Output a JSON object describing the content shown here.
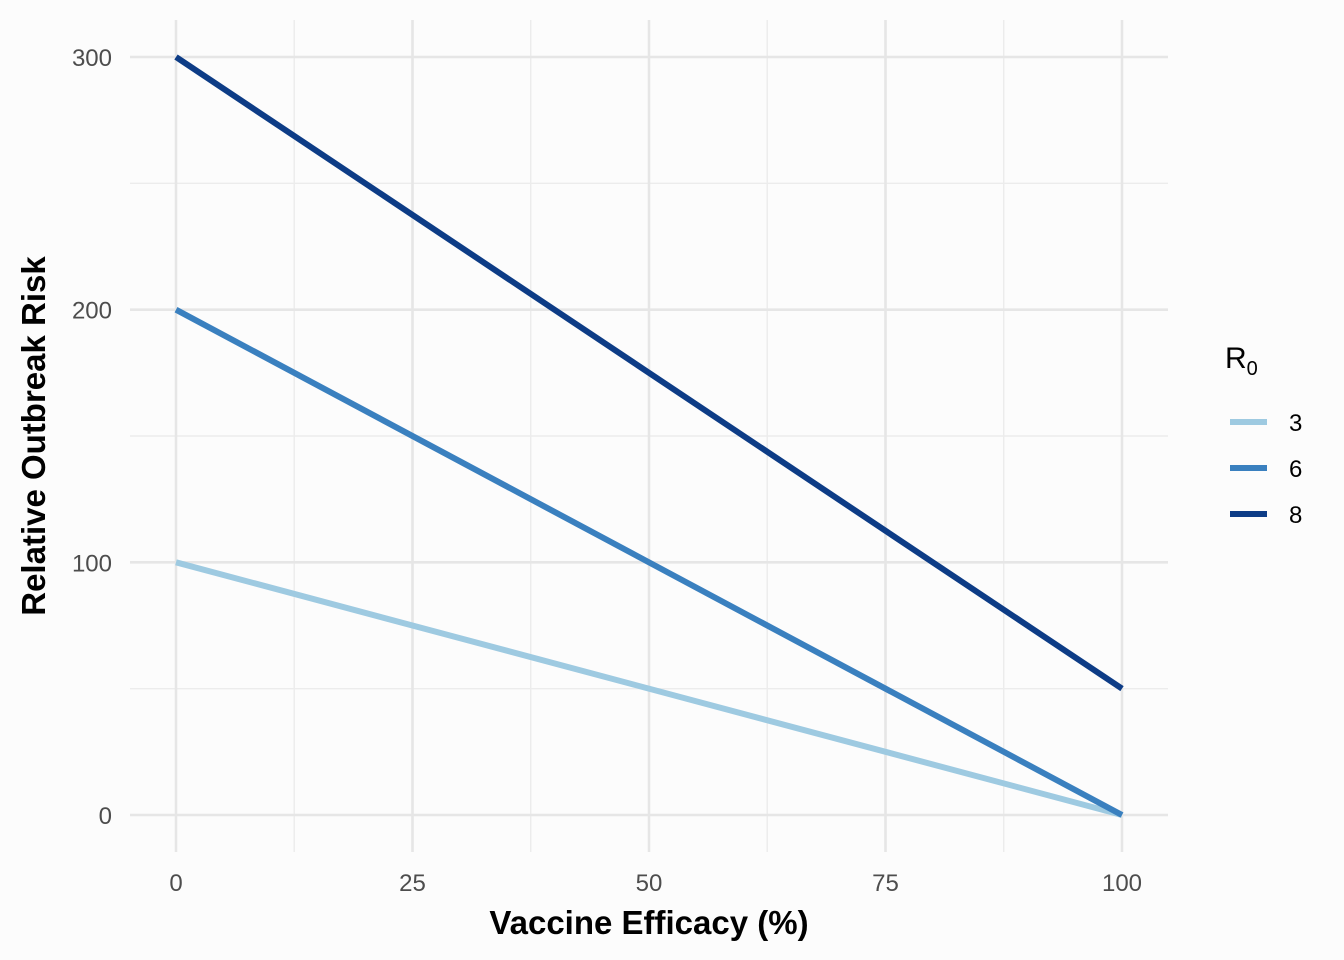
{
  "chart_data": {
    "type": "line",
    "title": "",
    "xlabel": "Vaccine Efficacy (%)",
    "ylabel": "Relative Outbreak Risk",
    "xlim": [
      0,
      100
    ],
    "ylim": [
      0,
      300
    ],
    "x_ticks": [
      0,
      25,
      50,
      75,
      100
    ],
    "y_ticks": [
      0,
      100,
      200,
      300
    ],
    "x_tick_labels": [
      "0",
      "25",
      "50",
      "75",
      "100"
    ],
    "y_tick_labels": [
      "0",
      "100",
      "200",
      "300"
    ],
    "grid": true,
    "legend": {
      "title_main": "R",
      "title_sub": "0",
      "placement": "right"
    },
    "series": [
      {
        "name": "3",
        "color": "#9ecae1",
        "x": [
          0,
          100
        ],
        "y": [
          100,
          0
        ]
      },
      {
        "name": "6",
        "color": "#3a80bf",
        "x": [
          0,
          100
        ],
        "y": [
          200,
          0
        ]
      },
      {
        "name": "8",
        "color": "#0d3c86",
        "x": [
          0,
          100
        ],
        "y": [
          300,
          50
        ]
      }
    ]
  }
}
